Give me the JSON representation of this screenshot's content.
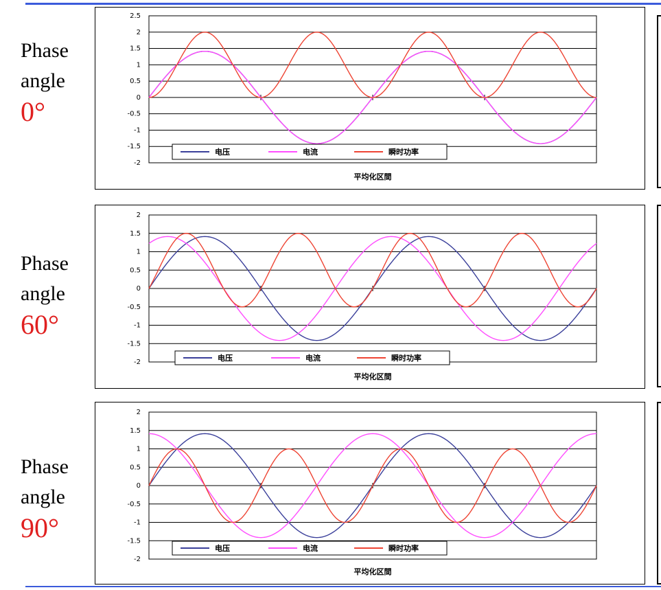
{
  "panels": [
    {
      "phase_word": "Phase",
      "angle_word": "angle",
      "degree_label": "0°",
      "chart_data": {
        "type": "line",
        "phase_deg": 0,
        "x_range_deg": [
          0,
          720
        ],
        "ylim": [
          -2,
          2.5
        ],
        "yticks": [
          "2.5",
          "2",
          "1.5",
          "1",
          "0.5",
          "0",
          "-0.5",
          "-1",
          "-1.5",
          "-2"
        ],
        "xlabel": "平均化区間",
        "grid": true,
        "legend_placement": "bottom-left",
        "series": [
          {
            "name": "电压",
            "color": "#3a3f9a",
            "formula": "sqrt(2)*sin(x)"
          },
          {
            "name": "电流",
            "color": "#ff4dff",
            "formula": "sqrt(2)*sin(x+phase)"
          },
          {
            "name": "瞬时功率",
            "color": "#ee4433",
            "formula": "2*sin(x)*sin(x+phase)"
          }
        ]
      }
    },
    {
      "phase_word": "Phase",
      "angle_word": "angle",
      "degree_label": "60°",
      "chart_data": {
        "type": "line",
        "phase_deg": 60,
        "x_range_deg": [
          0,
          720
        ],
        "ylim": [
          -2,
          2
        ],
        "yticks": [
          "2",
          "1.5",
          "1",
          "0.5",
          "0",
          "-0.5",
          "-1",
          "-1.5",
          "-2"
        ],
        "xlabel": "平均化区間",
        "grid": true,
        "legend_placement": "bottom-left",
        "series": [
          {
            "name": "电压",
            "color": "#3a3f9a",
            "formula": "sqrt(2)*sin(x)"
          },
          {
            "name": "电流",
            "color": "#ff4dff",
            "formula": "sqrt(2)*sin(x+phase)"
          },
          {
            "name": "瞬时功率",
            "color": "#ee4433",
            "formula": "2*sin(x)*sin(x+phase)"
          }
        ]
      }
    },
    {
      "phase_word": "Phase",
      "angle_word": "angle",
      "degree_label": "90°",
      "chart_data": {
        "type": "line",
        "phase_deg": 90,
        "x_range_deg": [
          0,
          720
        ],
        "ylim": [
          -2,
          2
        ],
        "yticks": [
          "2",
          "1.5",
          "1",
          "0.5",
          "0",
          "-0.5",
          "-1",
          "-1.5",
          "-2"
        ],
        "xlabel": "平均化区間",
        "grid": true,
        "legend_placement": "bottom-left",
        "series": [
          {
            "name": "电压",
            "color": "#3a3f9a",
            "formula": "sqrt(2)*sin(x)"
          },
          {
            "name": "电流",
            "color": "#ff4dff",
            "formula": "sqrt(2)*sin(x+phase)"
          },
          {
            "name": "瞬时功率",
            "color": "#ee4433",
            "formula": "2*sin(x)*sin(x+phase)"
          }
        ]
      }
    }
  ]
}
